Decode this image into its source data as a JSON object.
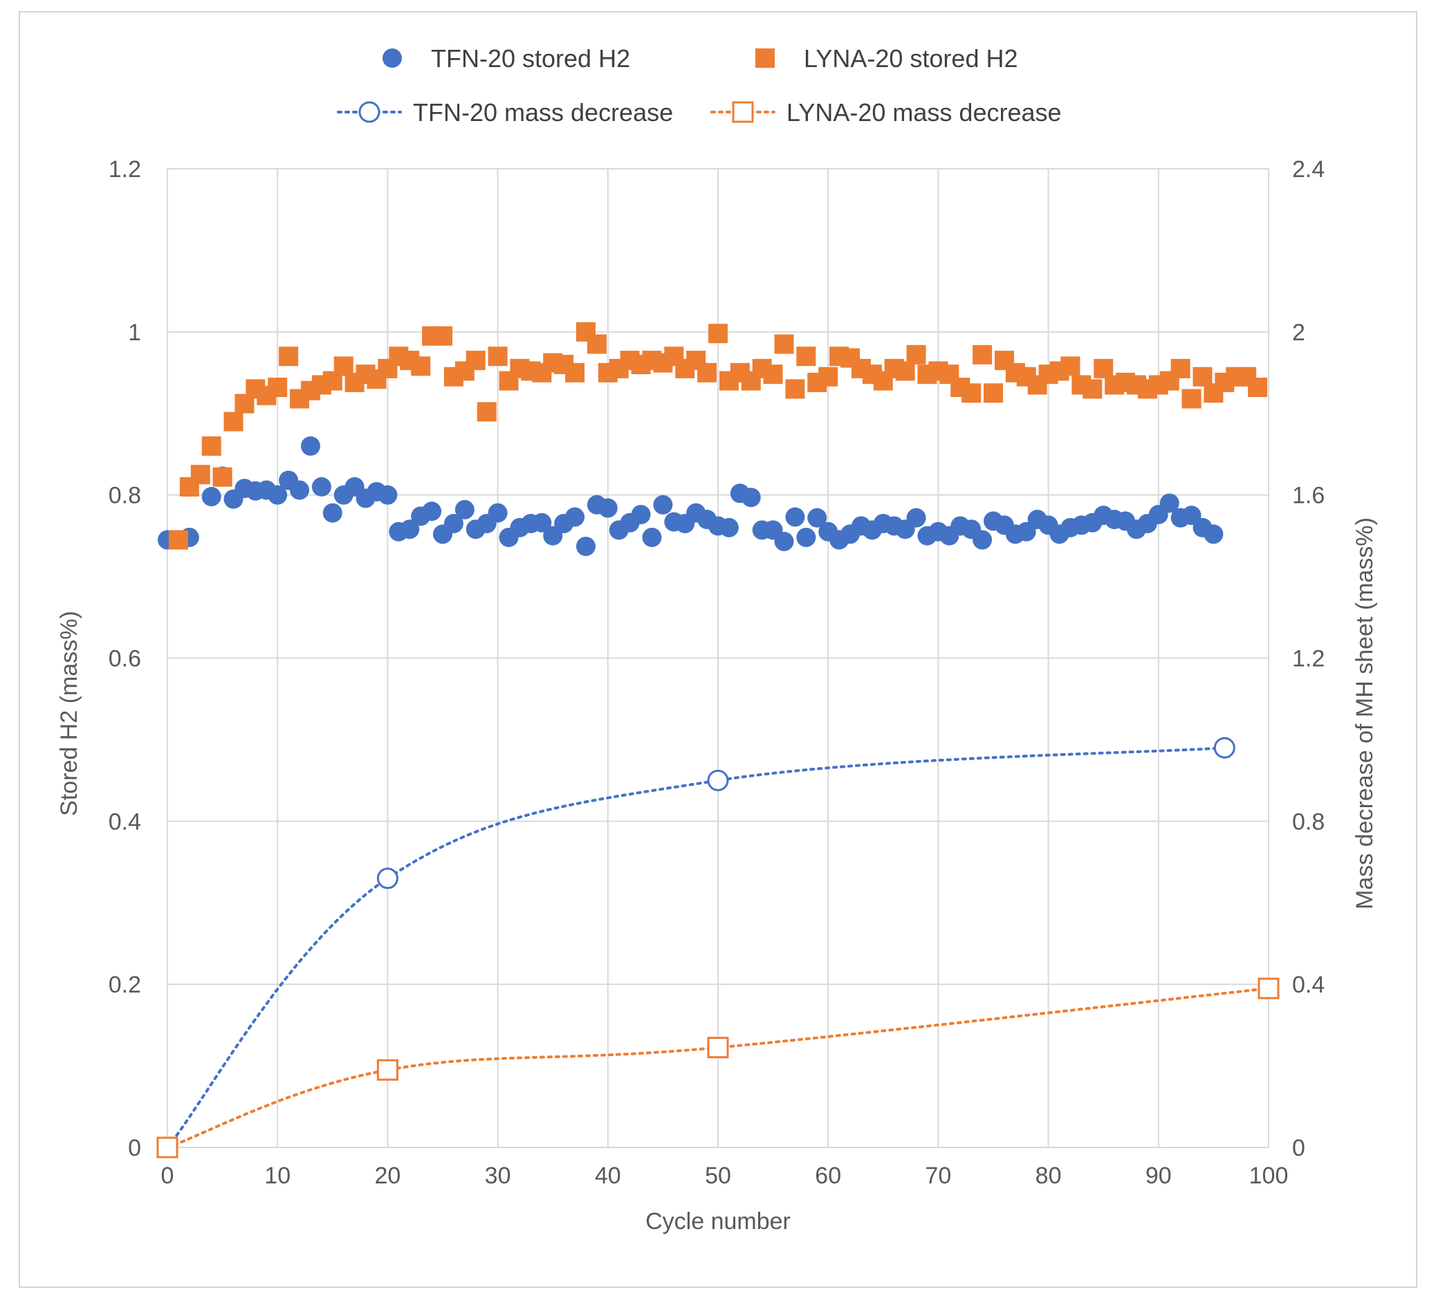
{
  "chart_data": {
    "type": "scatter",
    "xlabel": "Cycle number",
    "ylabel": "Stored H2 (mass%)",
    "y2label": "Mass decrease of MH sheet (mass%)",
    "xlim": [
      0,
      100
    ],
    "ylim": [
      0,
      1.2
    ],
    "y2lim": [
      0,
      2.4
    ],
    "x_ticks": [
      "0",
      "10",
      "20",
      "30",
      "40",
      "50",
      "60",
      "70",
      "80",
      "90",
      "100"
    ],
    "y_ticks": [
      "0",
      "0.2",
      "0.4",
      "0.6",
      "0.8",
      "1",
      "1.2"
    ],
    "y2_ticks": [
      "0",
      "0.4",
      "0.8",
      "1.2",
      "1.6",
      "2",
      "2.4"
    ],
    "grid": true,
    "legend_position": "top",
    "series": [
      {
        "name": "TFN-20 stored H2",
        "axis": "left",
        "marker": "filled-circle",
        "color": "#4472c4",
        "x": [
          0,
          2,
          4,
          5,
          6,
          7,
          8,
          9,
          10,
          11,
          12,
          13,
          14,
          15,
          16,
          17,
          18,
          19,
          20,
          21,
          22,
          23,
          24,
          25,
          26,
          27,
          28,
          29,
          30,
          31,
          32,
          33,
          34,
          35,
          36,
          37,
          38,
          39,
          40,
          41,
          42,
          43,
          44,
          45,
          46,
          47,
          48,
          49,
          50,
          51,
          52,
          53,
          54,
          55,
          56,
          57,
          58,
          59,
          60,
          61,
          62,
          63,
          64,
          65,
          66,
          67,
          68,
          69,
          70,
          71,
          72,
          73,
          74,
          75,
          76,
          77,
          78,
          79,
          80,
          81,
          82,
          83,
          84,
          85,
          86,
          87,
          88,
          89,
          90,
          91,
          92,
          93,
          94,
          95
        ],
        "y": [
          0.745,
          0.748,
          0.798,
          0.823,
          0.795,
          0.808,
          0.805,
          0.806,
          0.8,
          0.818,
          0.806,
          0.86,
          0.81,
          0.778,
          0.8,
          0.81,
          0.796,
          0.804,
          0.8,
          0.755,
          0.758,
          0.774,
          0.78,
          0.752,
          0.765,
          0.782,
          0.758,
          0.765,
          0.778,
          0.748,
          0.76,
          0.765,
          0.766,
          0.75,
          0.765,
          0.773,
          0.737,
          0.788,
          0.784,
          0.757,
          0.766,
          0.776,
          0.748,
          0.788,
          0.767,
          0.765,
          0.778,
          0.77,
          0.762,
          0.76,
          0.802,
          0.797,
          0.757,
          0.757,
          0.743,
          0.773,
          0.748,
          0.772,
          0.755,
          0.745,
          0.752,
          0.762,
          0.757,
          0.765,
          0.762,
          0.758,
          0.772,
          0.75,
          0.755,
          0.75,
          0.762,
          0.758,
          0.745,
          0.768,
          0.763,
          0.752,
          0.755,
          0.77,
          0.763,
          0.752,
          0.76,
          0.763,
          0.766,
          0.775,
          0.77,
          0.768,
          0.758,
          0.765,
          0.776,
          0.79,
          0.772,
          0.775,
          0.76,
          0.752
        ]
      },
      {
        "name": "LYNA-20 stored H2",
        "axis": "left",
        "marker": "filled-square",
        "color": "#ed7d31",
        "x": [
          1,
          2,
          3,
          4,
          5,
          6,
          7,
          8,
          9,
          10,
          11,
          12,
          13,
          14,
          15,
          16,
          17,
          18,
          19,
          20,
          21,
          22,
          23,
          24,
          25,
          26,
          27,
          28,
          29,
          30,
          31,
          32,
          33,
          34,
          35,
          36,
          37,
          38,
          39,
          40,
          41,
          42,
          43,
          44,
          45,
          46,
          47,
          48,
          49,
          50,
          51,
          52,
          53,
          54,
          55,
          56,
          57,
          58,
          59,
          60,
          61,
          62,
          63,
          64,
          65,
          66,
          67,
          68,
          69,
          70,
          71,
          72,
          73,
          74,
          75,
          76,
          77,
          78,
          79,
          80,
          81,
          82,
          83,
          84,
          85,
          86,
          87,
          88,
          89,
          90,
          91,
          92,
          93,
          94,
          95,
          96,
          97,
          98,
          99
        ],
        "y": [
          0.745,
          0.81,
          0.825,
          0.86,
          0.822,
          0.89,
          0.912,
          0.93,
          0.922,
          0.932,
          0.97,
          0.918,
          0.928,
          0.935,
          0.94,
          0.958,
          0.938,
          0.948,
          0.942,
          0.955,
          0.97,
          0.965,
          0.958,
          0.995,
          0.995,
          0.945,
          0.952,
          0.965,
          0.902,
          0.97,
          0.94,
          0.955,
          0.952,
          0.95,
          0.962,
          0.96,
          0.95,
          1.0,
          0.985,
          0.95,
          0.955,
          0.965,
          0.96,
          0.965,
          0.962,
          0.97,
          0.955,
          0.965,
          0.95,
          0.998,
          0.94,
          0.95,
          0.94,
          0.955,
          0.948,
          0.985,
          0.93,
          0.97,
          0.938,
          0.945,
          0.97,
          0.968,
          0.955,
          0.948,
          0.94,
          0.955,
          0.952,
          0.972,
          0.948,
          0.952,
          0.948,
          0.932,
          0.925,
          0.972,
          0.925,
          0.965,
          0.95,
          0.945,
          0.935,
          0.948,
          0.952,
          0.958,
          0.935,
          0.93,
          0.955,
          0.935,
          0.938,
          0.935,
          0.93,
          0.935,
          0.94,
          0.955,
          0.918,
          0.945,
          0.925,
          0.938,
          0.945,
          0.945,
          0.932
        ]
      },
      {
        "name": "TFN-20 mass decrease",
        "axis": "right",
        "marker": "open-circle",
        "line": "dotted",
        "color": "#4472c4",
        "x": [
          0,
          20,
          50,
          96
        ],
        "y": [
          0,
          0.66,
          0.9,
          0.98
        ]
      },
      {
        "name": "LYNA-20 mass decrease",
        "axis": "right",
        "marker": "open-square",
        "line": "dotted",
        "color": "#ed7d31",
        "x": [
          0,
          20,
          50,
          100
        ],
        "y": [
          0,
          0.19,
          0.245,
          0.39
        ]
      }
    ]
  }
}
